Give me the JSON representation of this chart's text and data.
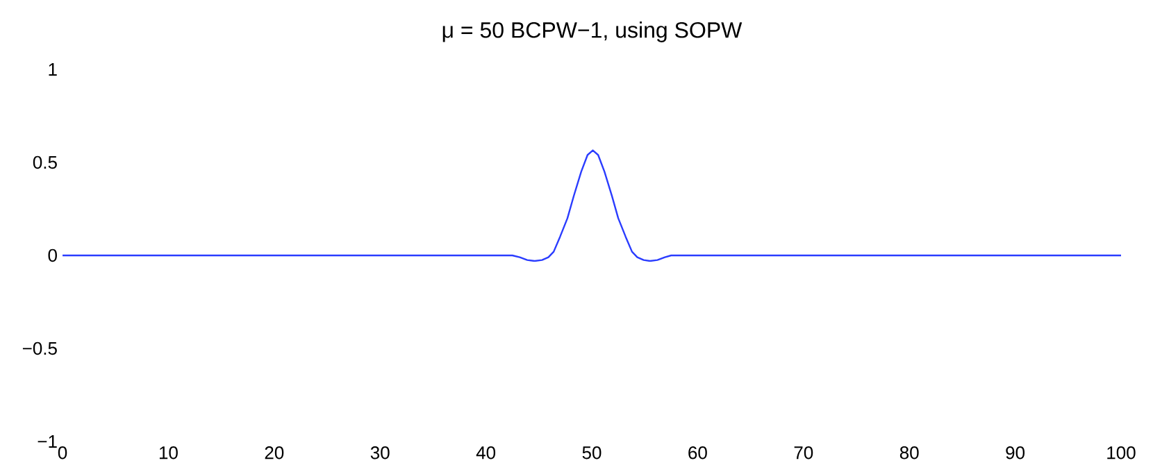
{
  "chart_data": {
    "type": "line",
    "title": "μ = 50  BCPW−1, using SOPW",
    "x": [
      0,
      42.5,
      43.2,
      43.9,
      44.6,
      45.3,
      45.9,
      46.4,
      47,
      47.7,
      48.3,
      49,
      49.6,
      50.1,
      50.6,
      51.2,
      51.9,
      52.5,
      53.2,
      53.8,
      54.3,
      54.9,
      55.5,
      56.2,
      56.9,
      57.5,
      100
    ],
    "series": [
      {
        "color": "#2a3cff",
        "values": [
          0,
          0,
          -0.01,
          -0.025,
          -0.03,
          -0.025,
          -0.01,
          0.02,
          0.1,
          0.2,
          0.32,
          0.45,
          0.54,
          0.565,
          0.54,
          0.45,
          0.32,
          0.2,
          0.1,
          0.02,
          -0.01,
          -0.025,
          -0.03,
          -0.025,
          -0.01,
          0,
          0
        ]
      }
    ],
    "xlim": [
      0,
      100
    ],
    "ylim": [
      -1,
      1
    ],
    "xticks": [
      0,
      10,
      20,
      30,
      40,
      50,
      60,
      70,
      80,
      90,
      100
    ],
    "yticks": [
      {
        "value": -1,
        "label": "−1"
      },
      {
        "value": -0.5,
        "label": "−0.5"
      },
      0,
      0.5,
      1
    ],
    "grid": false
  }
}
